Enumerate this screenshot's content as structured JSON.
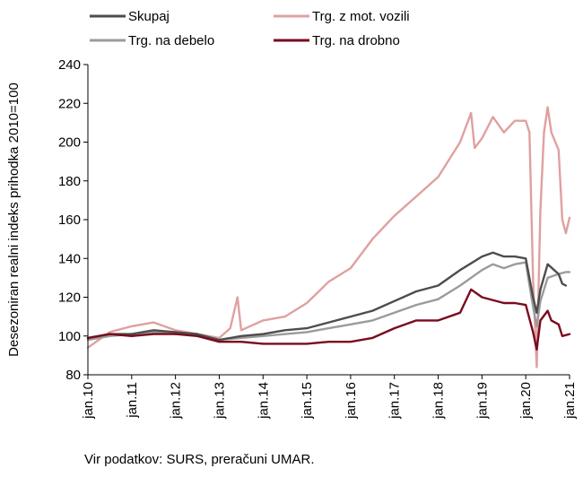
{
  "chart_data": {
    "type": "line",
    "ylabel": "Desezoniran realni indeks prihodka 2010=100",
    "ylim": [
      80,
      240
    ],
    "yticks": [
      80,
      100,
      120,
      140,
      160,
      180,
      200,
      220,
      240
    ],
    "x_start": "jan.10",
    "x_end": "jan.21",
    "x_tick_labels": [
      "jan.10",
      "jan.11",
      "jan.12",
      "jan.13",
      "jan.14",
      "jan.15",
      "jan.16",
      "jan.17",
      "jan.18",
      "jan.19",
      "jan.20",
      "jan.21"
    ],
    "grid": false,
    "legend_position": "top",
    "series": [
      {
        "name": "Skupaj",
        "color": "#4d4d4d",
        "points": [
          [
            "jan.10",
            99
          ],
          [
            "jul.10",
            101
          ],
          [
            "jan.11",
            101
          ],
          [
            "jul.11",
            103
          ],
          [
            "jan.12",
            102
          ],
          [
            "jul.12",
            101
          ],
          [
            "jan.13",
            98
          ],
          [
            "jul.13",
            100
          ],
          [
            "jan.14",
            101
          ],
          [
            "jul.14",
            103
          ],
          [
            "jan.15",
            104
          ],
          [
            "jul.15",
            107
          ],
          [
            "jan.16",
            110
          ],
          [
            "jul.16",
            113
          ],
          [
            "jan.17",
            118
          ],
          [
            "jul.17",
            123
          ],
          [
            "jan.18",
            126
          ],
          [
            "jul.18",
            134
          ],
          [
            "jan.19",
            141
          ],
          [
            "apr.19",
            143
          ],
          [
            "jul.19",
            141
          ],
          [
            "oct.19",
            141
          ],
          [
            "jan.20",
            140
          ],
          [
            "mar.20",
            120
          ],
          [
            "apr.20",
            112
          ],
          [
            "may.20",
            124
          ],
          [
            "jul.20",
            137
          ],
          [
            "oct.20",
            132
          ],
          [
            "nov.20",
            127
          ],
          [
            "dec.20",
            126
          ]
        ]
      },
      {
        "name": "Trg. na debelo",
        "color": "#9b9b9b",
        "points": [
          [
            "jan.10",
            98
          ],
          [
            "jul.10",
            100
          ],
          [
            "jan.11",
            101
          ],
          [
            "jul.11",
            102
          ],
          [
            "jan.12",
            101
          ],
          [
            "jul.12",
            101
          ],
          [
            "jan.13",
            98
          ],
          [
            "jul.13",
            99
          ],
          [
            "jan.14",
            100
          ],
          [
            "jul.14",
            101
          ],
          [
            "jan.15",
            102
          ],
          [
            "jul.15",
            104
          ],
          [
            "jan.16",
            106
          ],
          [
            "jul.16",
            108
          ],
          [
            "jan.17",
            112
          ],
          [
            "jul.17",
            116
          ],
          [
            "jan.18",
            119
          ],
          [
            "jul.18",
            126
          ],
          [
            "jan.19",
            134
          ],
          [
            "apr.19",
            137
          ],
          [
            "jul.19",
            135
          ],
          [
            "oct.19",
            137
          ],
          [
            "jan.20",
            138
          ],
          [
            "mar.20",
            115
          ],
          [
            "apr.20",
            105
          ],
          [
            "may.20",
            118
          ],
          [
            "jul.20",
            130
          ],
          [
            "oct.20",
            132
          ],
          [
            "dec.20",
            133
          ],
          [
            "jan.21",
            133
          ]
        ]
      },
      {
        "name": "Trg. z mot. vozili",
        "color": "#e0a0a0",
        "points": [
          [
            "jan.10",
            94
          ],
          [
            "jul.10",
            102
          ],
          [
            "jan.11",
            105
          ],
          [
            "jul.11",
            107
          ],
          [
            "jan.12",
            103
          ],
          [
            "jul.12",
            101
          ],
          [
            "jan.13",
            99
          ],
          [
            "apr.13",
            104
          ],
          [
            "jun.13",
            120
          ],
          [
            "jul.13",
            103
          ],
          [
            "jan.14",
            108
          ],
          [
            "jul.14",
            110
          ],
          [
            "jan.15",
            117
          ],
          [
            "jul.15",
            128
          ],
          [
            "jan.16",
            135
          ],
          [
            "jul.16",
            150
          ],
          [
            "jan.17",
            162
          ],
          [
            "jul.17",
            172
          ],
          [
            "jan.18",
            182
          ],
          [
            "jul.18",
            200
          ],
          [
            "oct.18",
            215
          ],
          [
            "nov.18",
            197
          ],
          [
            "jan.19",
            202
          ],
          [
            "apr.19",
            213
          ],
          [
            "jul.19",
            205
          ],
          [
            "oct.19",
            211
          ],
          [
            "jan.20",
            211
          ],
          [
            "feb.20",
            205
          ],
          [
            "mar.20",
            130
          ],
          [
            "apr.20",
            84
          ],
          [
            "may.20",
            165
          ],
          [
            "jun.20",
            205
          ],
          [
            "jul.20",
            218
          ],
          [
            "aug.20",
            205
          ],
          [
            "oct.20",
            196
          ],
          [
            "nov.20",
            160
          ],
          [
            "dec.20",
            153
          ],
          [
            "jan.21",
            161
          ]
        ]
      },
      {
        "name": "Trg. na drobno",
        "color": "#7a0a1e",
        "points": [
          [
            "jan.10",
            99
          ],
          [
            "jul.10",
            101
          ],
          [
            "jan.11",
            100
          ],
          [
            "jul.11",
            101
          ],
          [
            "jan.12",
            101
          ],
          [
            "jul.12",
            100
          ],
          [
            "jan.13",
            97
          ],
          [
            "jul.13",
            97
          ],
          [
            "jan.14",
            96
          ],
          [
            "jul.14",
            96
          ],
          [
            "jan.15",
            96
          ],
          [
            "jul.15",
            97
          ],
          [
            "jan.16",
            97
          ],
          [
            "jul.16",
            99
          ],
          [
            "jan.17",
            104
          ],
          [
            "jul.17",
            108
          ],
          [
            "jan.18",
            108
          ],
          [
            "jul.18",
            112
          ],
          [
            "oct.18",
            124
          ],
          [
            "jan.19",
            120
          ],
          [
            "jul.19",
            117
          ],
          [
            "oct.19",
            117
          ],
          [
            "jan.20",
            116
          ],
          [
            "mar.20",
            102
          ],
          [
            "apr.20",
            93
          ],
          [
            "may.20",
            108
          ],
          [
            "jul.20",
            113
          ],
          [
            "aug.20",
            108
          ],
          [
            "oct.20",
            106
          ],
          [
            "nov.20",
            100
          ],
          [
            "jan.21",
            101
          ]
        ]
      }
    ]
  },
  "footer": {
    "source": "Vir podatkov: SURS, preračuni UMAR."
  }
}
